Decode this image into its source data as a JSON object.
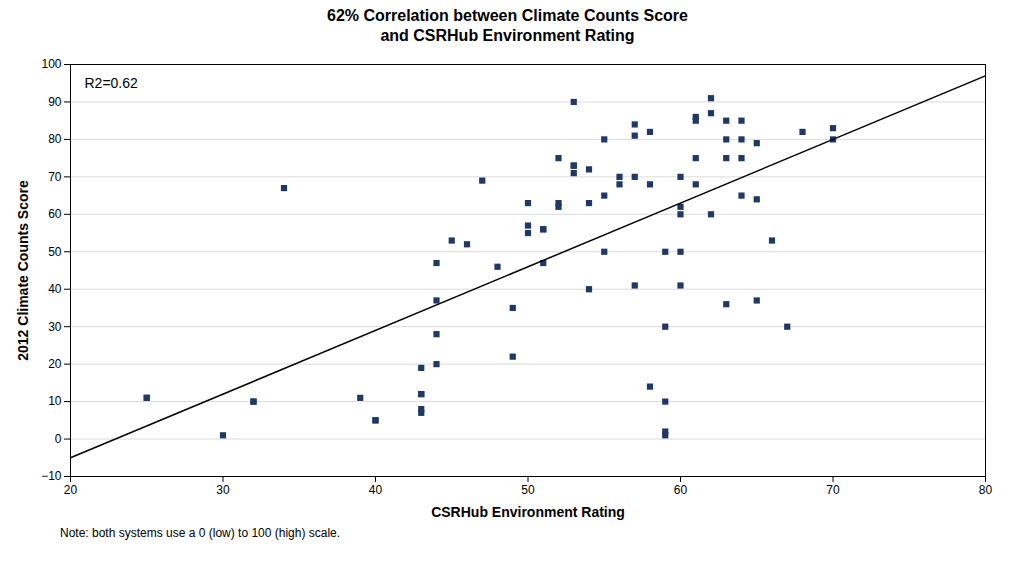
{
  "chart_data": {
    "type": "scatter",
    "title": "62% Correlation between Climate Counts Score\nand CSRHub Environment Rating",
    "xlabel": "CSRHub Environment Rating",
    "ylabel": "2012 Climate Counts Score",
    "annotation": "R2=0.62",
    "note": "Note: both systems use a 0 (low) to 100 (high) scale.",
    "xlim": [
      20,
      80
    ],
    "ylim": [
      -10,
      100
    ],
    "xticks": [
      20,
      30,
      40,
      50,
      60,
      70,
      80
    ],
    "yticks": [
      -10,
      0,
      10,
      20,
      30,
      40,
      50,
      60,
      70,
      80,
      90,
      100
    ],
    "grid": "y",
    "series": [
      {
        "type": "scatter",
        "marker": "square",
        "color": "#1F3864",
        "x": [
          25,
          25,
          30,
          32,
          32,
          34,
          39,
          40,
          40,
          43,
          43,
          43,
          43,
          43,
          44,
          44,
          44,
          44,
          45,
          46,
          47,
          48,
          49,
          49,
          50,
          50,
          50,
          51,
          51,
          51,
          52,
          52,
          52,
          53,
          53,
          53,
          53,
          54,
          54,
          54,
          55,
          55,
          55,
          56,
          56,
          57,
          57,
          57,
          57,
          58,
          58,
          58,
          59,
          59,
          59,
          59,
          59,
          60,
          60,
          60,
          60,
          60,
          61,
          61,
          61,
          61,
          62,
          62,
          62,
          63,
          63,
          63,
          63,
          64,
          64,
          64,
          64,
          65,
          65,
          65,
          66,
          67,
          68,
          70,
          70
        ],
        "values": [
          11,
          11,
          1,
          10,
          10,
          67,
          11,
          5,
          5,
          19,
          7,
          12,
          12,
          8,
          47,
          37,
          28,
          20,
          53,
          52,
          69,
          46,
          35,
          22,
          63,
          57,
          55,
          56,
          56,
          47,
          75,
          63,
          62,
          90,
          73,
          73,
          71,
          72,
          63,
          40,
          80,
          65,
          50,
          70,
          68,
          84,
          81,
          70,
          41,
          82,
          68,
          14,
          30,
          10,
          2,
          1,
          50,
          70,
          62,
          60,
          50,
          41,
          86,
          85,
          75,
          68,
          91,
          87,
          60,
          85,
          80,
          75,
          36,
          85,
          80,
          75,
          65,
          79,
          64,
          37,
          53,
          30,
          82,
          83,
          80
        ]
      },
      {
        "type": "line",
        "color": "#000000",
        "x": [
          20,
          80
        ],
        "values": [
          -5,
          97
        ]
      }
    ]
  }
}
